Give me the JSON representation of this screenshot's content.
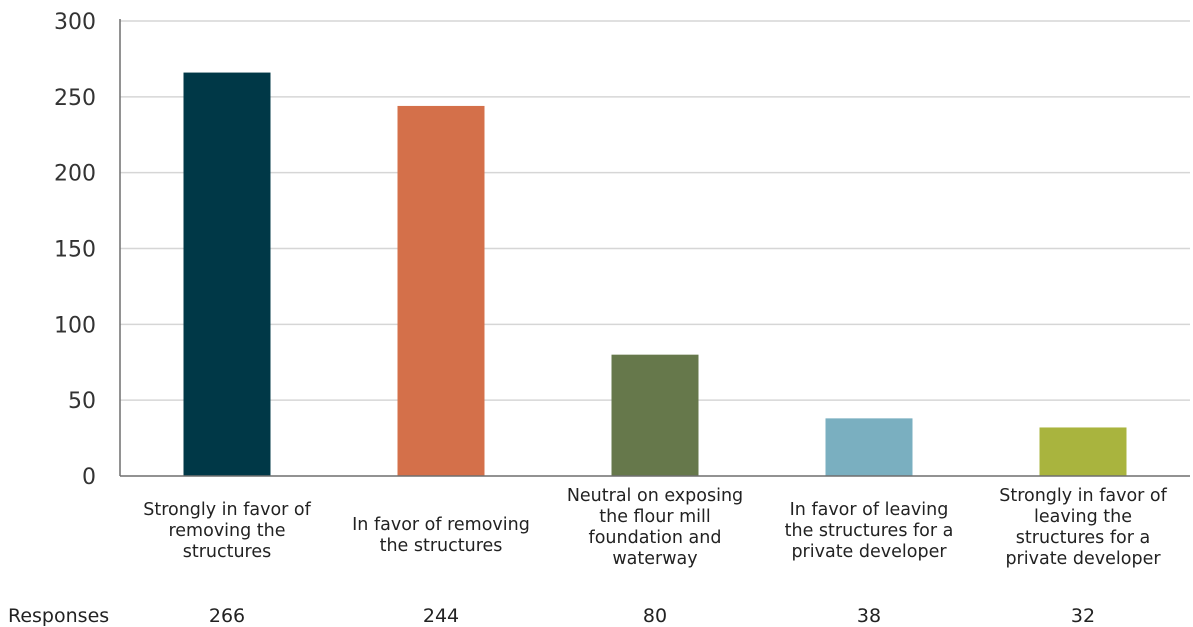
{
  "chart_data": {
    "type": "bar",
    "categories": [
      "Strongly in favor of removing the structures",
      "In favor of removing the structures",
      "Neutral on exposing the flour mill foundation and waterway",
      "In favor of leaving the structures for a private developer",
      "Strongly in favor of leaving the structures for a private developer"
    ],
    "category_lines": [
      [
        "Strongly in favor of",
        "removing the",
        "structures"
      ],
      [
        "In favor of removing",
        "the structures"
      ],
      [
        "Neutral on exposing",
        "the flour mill",
        "foundation and",
        "waterway"
      ],
      [
        "In favor of leaving",
        "the structures for a",
        "private developer"
      ],
      [
        "Strongly in favor of",
        "leaving the",
        "structures for a",
        "private developer"
      ]
    ],
    "values": [
      266,
      244,
      80,
      38,
      32
    ],
    "value_labels": [
      "266",
      "244",
      "80",
      "38",
      "32"
    ],
    "colors": [
      "#003847",
      "#d4704a",
      "#66784b",
      "#7aafc0",
      "#a9b43e"
    ],
    "row_label": "Responses",
    "ylim": [
      0,
      300
    ],
    "yticks": [
      0,
      50,
      100,
      150,
      200,
      250,
      300
    ],
    "grid": true,
    "legend": false,
    "title": "",
    "xlabel": "",
    "ylabel": ""
  }
}
